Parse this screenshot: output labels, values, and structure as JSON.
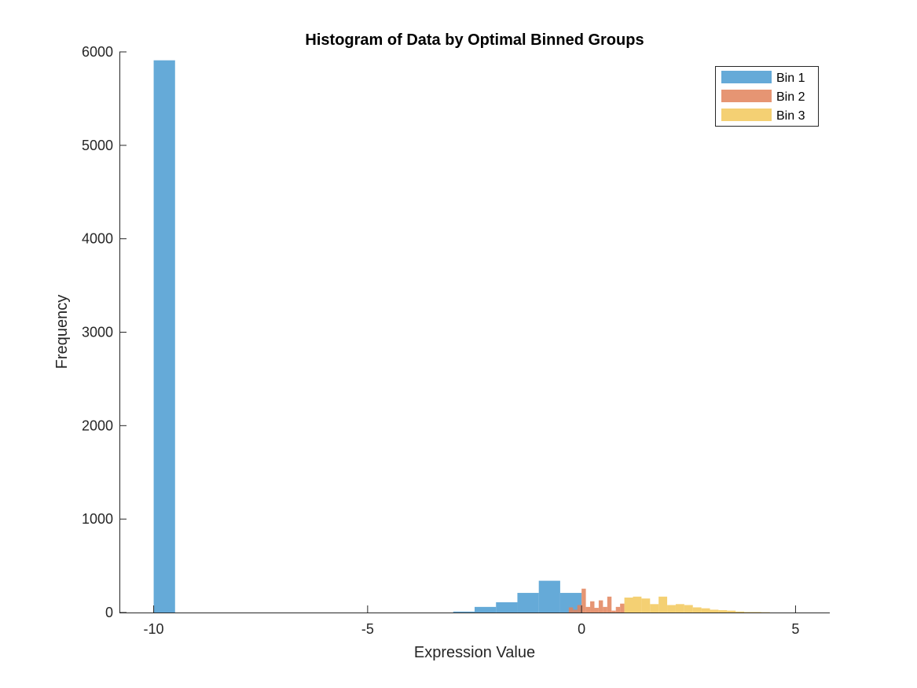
{
  "chart_data": {
    "type": "bar",
    "title": "Histogram of Data by Optimal Binned Groups",
    "xlabel": "Expression Value",
    "ylabel": "Frequency",
    "xlim": [
      -10.8,
      5.8
    ],
    "ylim": [
      0,
      6000
    ],
    "xticks": [
      -10,
      -5,
      0,
      5
    ],
    "yticks": [
      0,
      1000,
      2000,
      3000,
      4000,
      5000,
      6000
    ],
    "grid": false,
    "legend_position": "top-right",
    "series": [
      {
        "name": "Bin 1",
        "color": "#4a9bd1",
        "bins": [
          {
            "x0": -10.0,
            "x1": -9.5,
            "y": 5910
          },
          {
            "x0": -3.0,
            "x1": -2.5,
            "y": 10
          },
          {
            "x0": -2.5,
            "x1": -2.0,
            "y": 60
          },
          {
            "x0": -2.0,
            "x1": -1.5,
            "y": 110
          },
          {
            "x0": -1.5,
            "x1": -1.0,
            "y": 210
          },
          {
            "x0": -1.0,
            "x1": -0.5,
            "y": 340
          },
          {
            "x0": -0.5,
            "x1": 0.0,
            "y": 210
          }
        ]
      },
      {
        "name": "Bin 2",
        "color": "#e2835a",
        "bins": [
          {
            "x0": -0.3,
            "x1": -0.2,
            "y": 55
          },
          {
            "x0": -0.2,
            "x1": -0.1,
            "y": 30
          },
          {
            "x0": -0.1,
            "x1": 0.0,
            "y": 80
          },
          {
            "x0": 0.0,
            "x1": 0.1,
            "y": 255
          },
          {
            "x0": 0.1,
            "x1": 0.2,
            "y": 60
          },
          {
            "x0": 0.2,
            "x1": 0.3,
            "y": 120
          },
          {
            "x0": 0.3,
            "x1": 0.4,
            "y": 50
          },
          {
            "x0": 0.4,
            "x1": 0.5,
            "y": 130
          },
          {
            "x0": 0.5,
            "x1": 0.6,
            "y": 60
          },
          {
            "x0": 0.6,
            "x1": 0.7,
            "y": 170
          },
          {
            "x0": 0.7,
            "x1": 0.8,
            "y": 20
          },
          {
            "x0": 0.8,
            "x1": 0.9,
            "y": 60
          },
          {
            "x0": 0.9,
            "x1": 1.0,
            "y": 95
          }
        ]
      },
      {
        "name": "Bin 3",
        "color": "#f2c85b",
        "bins": [
          {
            "x0": 1.0,
            "x1": 1.2,
            "y": 160
          },
          {
            "x0": 1.2,
            "x1": 1.4,
            "y": 170
          },
          {
            "x0": 1.4,
            "x1": 1.6,
            "y": 150
          },
          {
            "x0": 1.6,
            "x1": 1.8,
            "y": 90
          },
          {
            "x0": 1.8,
            "x1": 2.0,
            "y": 170
          },
          {
            "x0": 2.0,
            "x1": 2.2,
            "y": 80
          },
          {
            "x0": 2.2,
            "x1": 2.4,
            "y": 90
          },
          {
            "x0": 2.4,
            "x1": 2.6,
            "y": 80
          },
          {
            "x0": 2.6,
            "x1": 2.8,
            "y": 55
          },
          {
            "x0": 2.8,
            "x1": 3.0,
            "y": 45
          },
          {
            "x0": 3.0,
            "x1": 3.2,
            "y": 30
          },
          {
            "x0": 3.2,
            "x1": 3.4,
            "y": 25
          },
          {
            "x0": 3.4,
            "x1": 3.6,
            "y": 20
          },
          {
            "x0": 3.6,
            "x1": 3.8,
            "y": 10
          },
          {
            "x0": 3.8,
            "x1": 4.0,
            "y": 5
          },
          {
            "x0": 4.0,
            "x1": 4.2,
            "y": 5
          },
          {
            "x0": 4.2,
            "x1": 4.4,
            "y": 3
          }
        ]
      }
    ]
  }
}
